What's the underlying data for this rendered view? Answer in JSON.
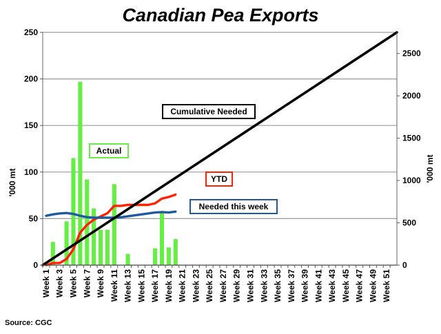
{
  "chart_data": {
    "type": "bar",
    "title": "Canadian Pea Exports",
    "source": "Source: CGC",
    "ylabel_left": "'000 mt",
    "ylabel_right": "'000 mt",
    "ylim_left": [
      0,
      250
    ],
    "yticks_left": [
      0,
      50,
      100,
      150,
      200,
      250
    ],
    "ylim_right": [
      0,
      2750
    ],
    "yticks_right": [
      0,
      500,
      1000,
      1500,
      2000,
      2500
    ],
    "grid": true,
    "weeks": [
      1,
      2,
      3,
      4,
      5,
      6,
      7,
      8,
      9,
      10,
      11,
      12,
      13,
      14,
      15,
      16,
      17,
      18,
      19,
      20,
      21,
      22,
      23,
      24,
      25,
      26,
      27,
      28,
      29,
      30,
      31,
      32,
      33,
      34,
      35,
      36,
      37,
      38,
      39,
      40,
      41,
      42,
      43,
      44,
      45,
      46,
      47,
      48,
      49,
      50,
      51,
      52
    ],
    "x_tick_labels": [
      "Week 1",
      "Week 3",
      "Week 5",
      "Week 7",
      "Week 9",
      "Week 11",
      "Week 13",
      "Week 15",
      "Week 17",
      "Week 19",
      "Week 21",
      "Week 23",
      "Week 25",
      "Week 27",
      "Week 29",
      "Week 31",
      "Week 33",
      "Week 35",
      "Week 37",
      "Week 39",
      "Week 41",
      "Week 43",
      "Week 45",
      "Week 47",
      "Week 49",
      "Week 51"
    ],
    "series": [
      {
        "name": "Actual",
        "kind": "bar",
        "axis": "left",
        "color": "#66ee44",
        "x": [
          1,
          2,
          3,
          4,
          5,
          6,
          7,
          8,
          9,
          10,
          11,
          12,
          13,
          14,
          15,
          16,
          17,
          18,
          19,
          20
        ],
        "values": [
          0,
          25,
          0,
          47,
          115,
          197,
          92,
          61,
          38,
          38,
          87,
          0,
          12,
          0,
          0,
          0,
          18,
          56,
          19,
          28
        ]
      },
      {
        "name": "YTD",
        "kind": "line",
        "axis": "right",
        "color": "#ff2200",
        "x": [
          1,
          2,
          3,
          4,
          5,
          6,
          7,
          8,
          9,
          10,
          11,
          12,
          13,
          14,
          15,
          16,
          17,
          18,
          19,
          20
        ],
        "values": [
          0,
          25,
          25,
          72,
          187,
          384,
          476,
          537,
          575,
          613,
          700,
          700,
          712,
          712,
          712,
          712,
          730,
          786,
          805,
          833
        ]
      },
      {
        "name": "Needed this week",
        "kind": "line",
        "axis": "left",
        "color": "#1f5aa0",
        "x": [
          1,
          2,
          3,
          4,
          5,
          6,
          7,
          8,
          9,
          10,
          11,
          12,
          13,
          14,
          15,
          16,
          17,
          18,
          19,
          20
        ],
        "values": [
          53,
          54.5,
          55.5,
          56,
          55,
          53,
          51.5,
          51,
          51,
          51,
          51,
          51.5,
          52.5,
          53.5,
          54.5,
          55.5,
          56.5,
          57,
          56.5,
          57.5
        ]
      },
      {
        "name": "Cumulative Needed",
        "kind": "line",
        "axis": "right",
        "color": "#000000",
        "x": [
          1,
          52
        ],
        "values": [
          0,
          2750
        ]
      }
    ],
    "annotations": [
      {
        "text": "Cumulative Needed",
        "border": "#000000"
      },
      {
        "text": "Actual",
        "border": "#66ee44"
      },
      {
        "text": "YTD",
        "border": "#ff2200"
      },
      {
        "text": "Needed this week",
        "border": "#1f5aa0"
      }
    ]
  }
}
